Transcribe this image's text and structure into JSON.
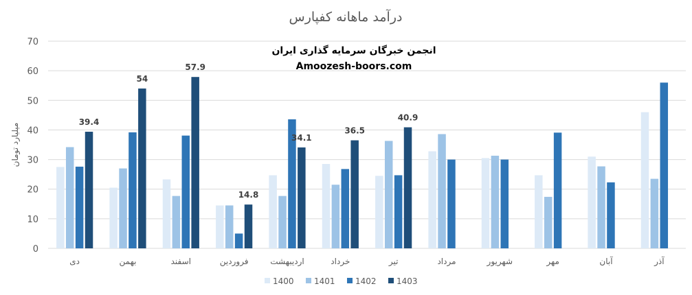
{
  "chart_data": {
    "type": "bar",
    "title": "درآمد ماهانه کفپارس",
    "watermark": {
      "line1": "انجمن خبرگان سرمایه گذاری ایران",
      "line2": "Amoozesh-boors.com"
    },
    "xlabel": "",
    "ylabel": "میلیارد تومان",
    "ylim": [
      0,
      70
    ],
    "yticks": [
      0,
      10,
      20,
      30,
      40,
      50,
      60,
      70
    ],
    "grid": true,
    "legend_position": "bottom",
    "categories": [
      "دی",
      "بهمن",
      "اسفند",
      "فروردین",
      "اردیبهشت",
      "خرداد",
      "تیر",
      "مرداد",
      "شهریور",
      "مهر",
      "آبان",
      "آذر"
    ],
    "series": [
      {
        "name": "1400",
        "color": "#ddeaf7",
        "values": [
          27.5,
          20.5,
          23.3,
          14.5,
          24.7,
          28.5,
          24.5,
          32.8,
          30.5,
          24.7,
          31.0,
          46.0
        ]
      },
      {
        "name": "1401",
        "color": "#9dc3e6",
        "values": [
          34.2,
          27.0,
          17.7,
          14.5,
          17.7,
          21.5,
          36.3,
          38.6,
          31.3,
          17.4,
          27.7,
          23.5
        ]
      },
      {
        "name": "1402",
        "color": "#2e75b6",
        "values": [
          27.6,
          39.2,
          38.1,
          5.0,
          43.6,
          26.8,
          24.7,
          30.0,
          30.0,
          39.1,
          22.3,
          56.0
        ]
      },
      {
        "name": "1403",
        "color": "#1f4e79",
        "values": [
          39.4,
          54,
          57.9,
          14.8,
          34.1,
          36.5,
          40.9,
          null,
          null,
          null,
          null,
          null
        ]
      }
    ],
    "data_labels": [
      {
        "category": "دی",
        "series": "1403",
        "text": "39.4"
      },
      {
        "category": "بهمن",
        "series": "1403",
        "text": "54"
      },
      {
        "category": "اسفند",
        "series": "1403",
        "text": "57.9"
      },
      {
        "category": "فروردین",
        "series": "1403",
        "text": "14.8"
      },
      {
        "category": "اردیبهشت",
        "series": "1403",
        "text": "34.1"
      },
      {
        "category": "خرداد",
        "series": "1403",
        "text": "36.5"
      },
      {
        "category": "تیر",
        "series": "1403",
        "text": "40.9"
      }
    ]
  }
}
